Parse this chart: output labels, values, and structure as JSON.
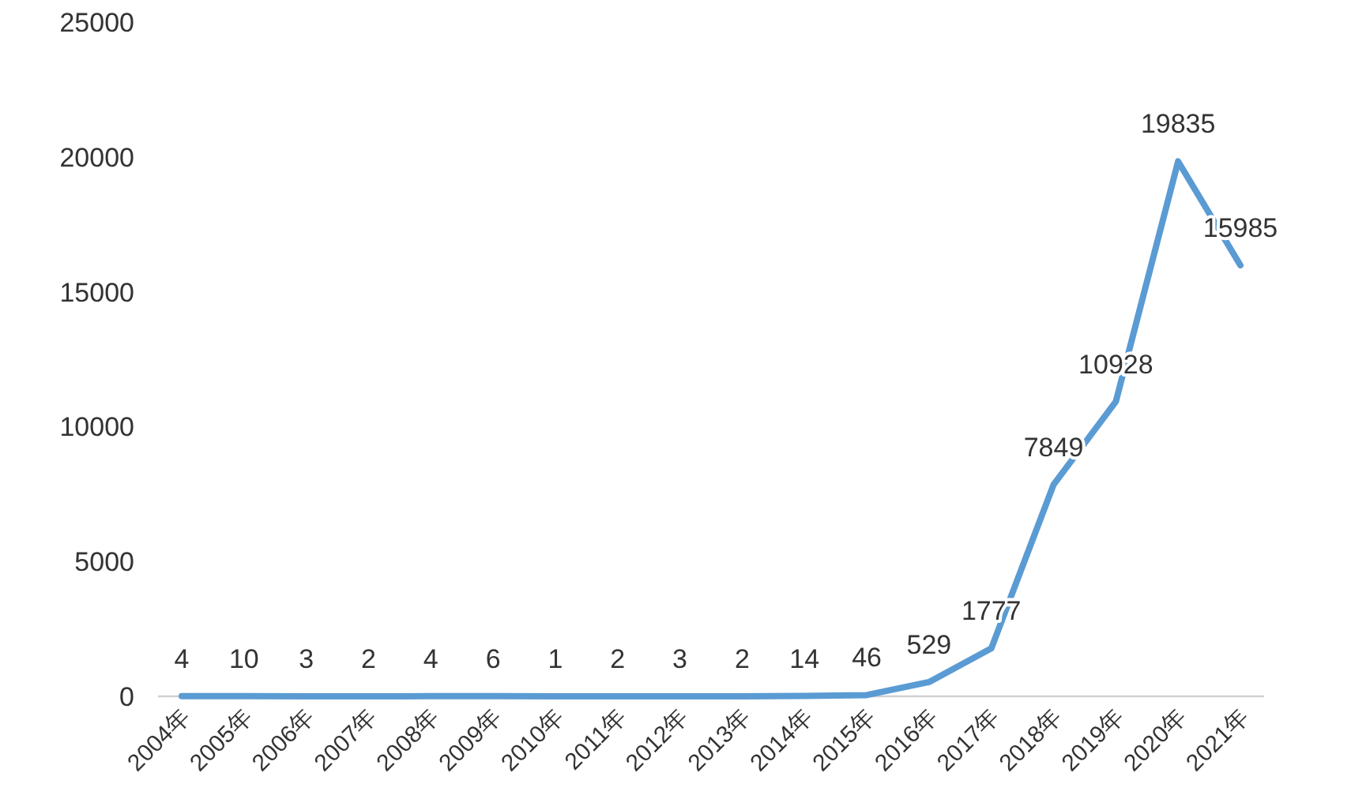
{
  "chart_data": {
    "type": "line",
    "categories": [
      "2004年",
      "2005年",
      "2006年",
      "2007年",
      "2008年",
      "2009年",
      "2010年",
      "2011年",
      "2012年",
      "2013年",
      "2014年",
      "2015年",
      "2016年",
      "2017年",
      "2018年",
      "2019年",
      "2020年",
      "2021年"
    ],
    "values": [
      4,
      10,
      3,
      2,
      4,
      6,
      1,
      2,
      3,
      2,
      14,
      46,
      529,
      1777,
      7849,
      10928,
      19835,
      15985
    ],
    "color": "#5a9bd3",
    "ylim": [
      0,
      25000
    ],
    "yticks": [
      0,
      5000,
      10000,
      15000,
      20000,
      25000
    ],
    "data_labels": true,
    "line_style": "solid"
  }
}
